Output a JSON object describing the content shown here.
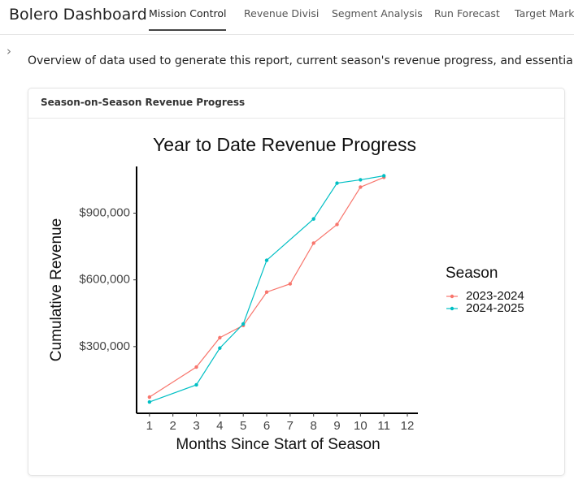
{
  "header": {
    "title": "Bolero Dashboard",
    "tabs": [
      "Mission Control",
      "Revenue Divisi",
      "Segment Analysis",
      "Run Forecast",
      "Target Mark"
    ]
  },
  "overview": "Overview of data used to generate this report, current season's revenue progress, and essential KPIs",
  "card": {
    "title": "Season-on-Season Revenue Progress"
  },
  "chart_data": {
    "type": "line",
    "title": "Year to Date Revenue Progress",
    "x_label": "Months Since Start of Season",
    "y_label": "Cumulative Revenue",
    "legend_title": "Season",
    "xlim": [
      0.45,
      12.45
    ],
    "xticks": [
      1,
      2,
      3,
      4,
      5,
      6,
      7,
      8,
      9,
      10,
      11,
      12
    ],
    "ylim": [
      0,
      1110000
    ],
    "yticks": [
      {
        "value": 300000,
        "label": "$300,000"
      },
      {
        "value": 600000,
        "label": "$600,000"
      },
      {
        "value": 900000,
        "label": "$900,000"
      }
    ],
    "series": [
      {
        "name": "2023-2024",
        "color": "#F8766D",
        "x": [
          1,
          3,
          4,
          5,
          6,
          7,
          8,
          9,
          10,
          11
        ],
        "values": [
          73000,
          208000,
          340000,
          395000,
          545000,
          582000,
          765000,
          849000,
          1017000,
          1061000
        ]
      },
      {
        "name": "2024-2025",
        "color": "#00BFC4",
        "x": [
          1,
          3,
          4,
          5,
          6,
          8,
          9,
          10,
          11
        ],
        "values": [
          51000,
          128000,
          293000,
          402000,
          688000,
          874000,
          1035000,
          1050000,
          1068000
        ]
      }
    ]
  }
}
